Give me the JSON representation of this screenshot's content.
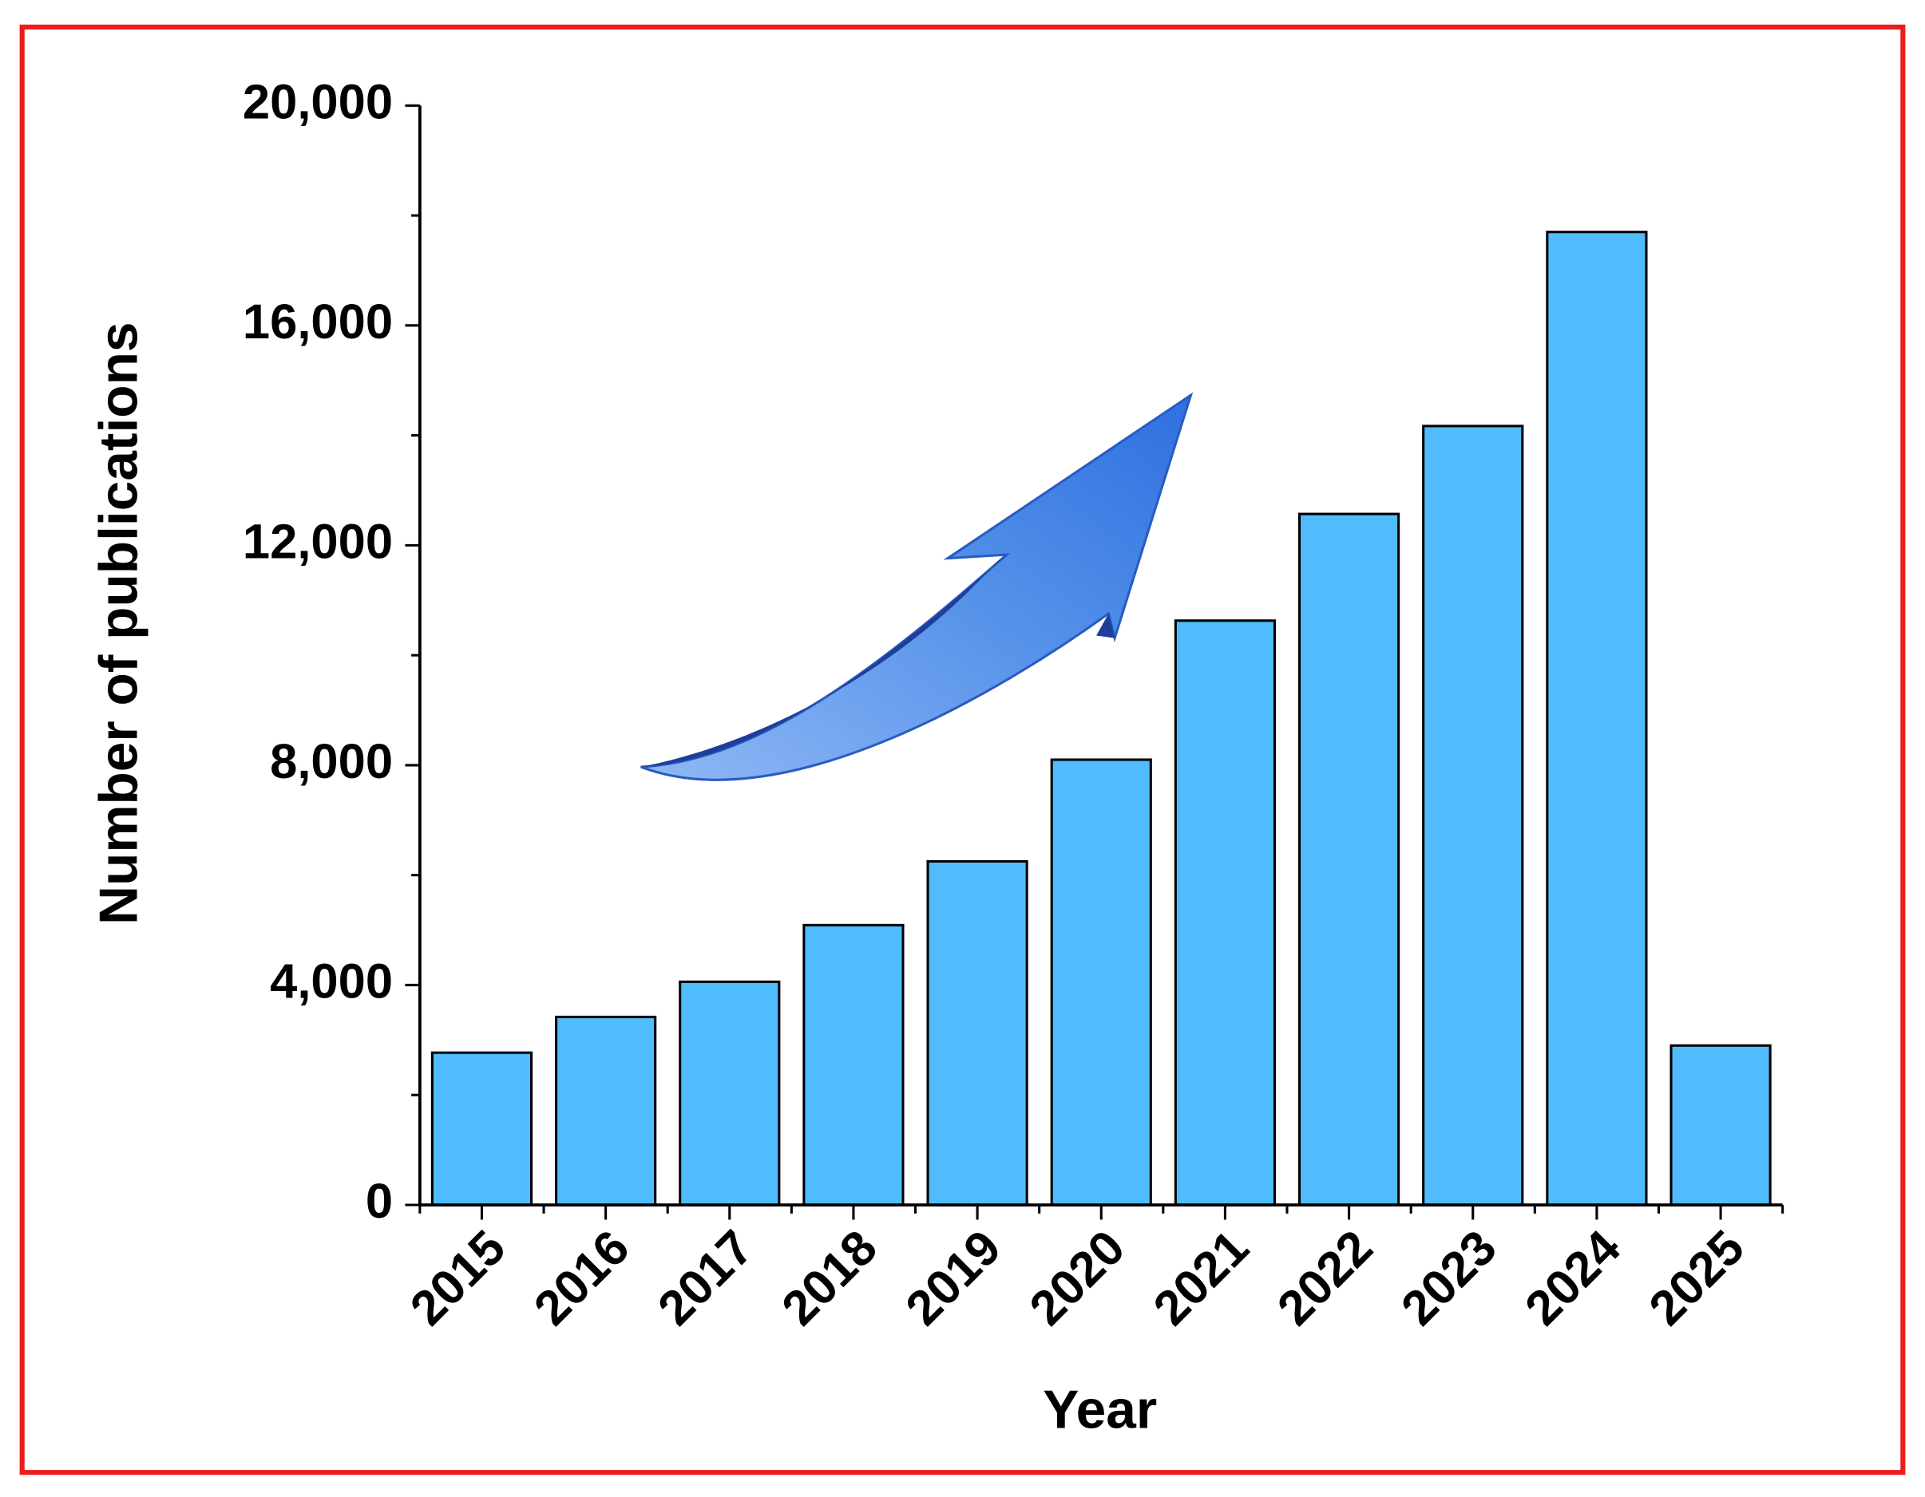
{
  "chart_data": {
    "type": "bar",
    "x_label": "Year",
    "y_label": "Number of publications",
    "categories": [
      "2015",
      "2016",
      "2017",
      "2018",
      "2019",
      "2020",
      "2021",
      "2022",
      "2023",
      "2024",
      "2025"
    ],
    "values": [
      2770,
      3420,
      4060,
      5090,
      6250,
      8100,
      10630,
      12570,
      14170,
      17700,
      2900
    ],
    "color": "#50bcfe",
    "ylim": [
      0,
      20000
    ],
    "yticks": [
      0,
      {
        "value": 4000,
        "label": "4,000"
      },
      {
        "value": 8000,
        "label": "8,000"
      },
      {
        "value": 12000,
        "label": "12,000"
      },
      {
        "value": 16000,
        "label": "16,000"
      },
      {
        "value": 20000,
        "label": "20,000"
      }
    ],
    "yminorticks": [
      2000,
      6000,
      10000,
      14000,
      18000
    ],
    "grid": false
  }
}
